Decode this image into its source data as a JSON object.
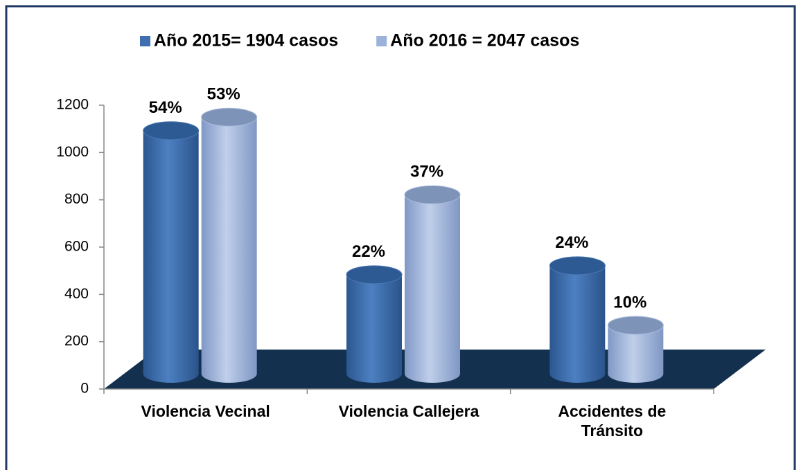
{
  "chart_data": {
    "type": "bar",
    "categories": [
      "Violencia Vecinal",
      "Violencia Callejera",
      "Accidentes de Tránsito"
    ],
    "series": [
      {
        "name": "Año 2015= 1904 casos",
        "color": "#3f6fae",
        "values": [
          1028,
          419,
          457
        ],
        "percentages": [
          54,
          22,
          24
        ],
        "percentage_labels": [
          "54%",
          "22%",
          "24%"
        ]
      },
      {
        "name": "Año 2016 = 2047 casos",
        "color": "#9db2db",
        "values": [
          1085,
          757,
          205
        ],
        "percentages": [
          53,
          37,
          10
        ],
        "percentage_labels": [
          "53%",
          "37%",
          "10%"
        ]
      }
    ],
    "ylim": [
      0,
      1200
    ],
    "yticks": [
      0,
      200,
      400,
      600,
      800,
      1000,
      1200
    ],
    "grid": false
  }
}
